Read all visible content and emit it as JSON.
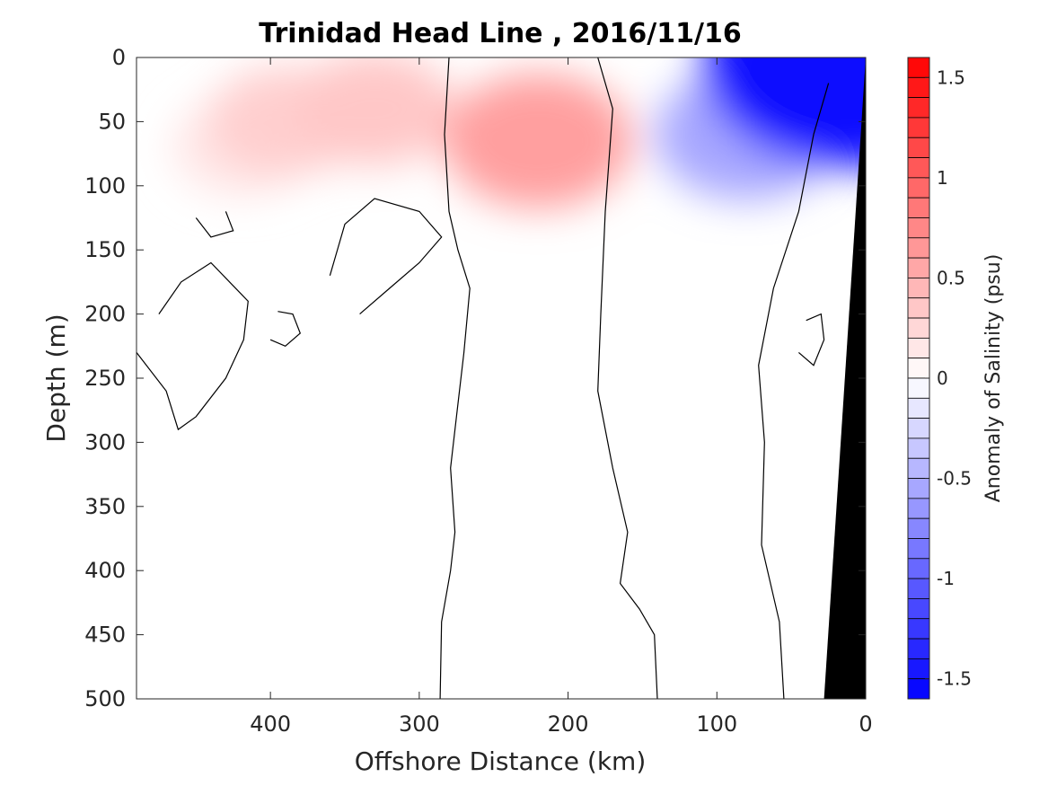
{
  "chart_data": {
    "type": "heatmap",
    "title": "Trinidad Head Line , 2016/11/16",
    "xlabel": "Offshore Distance (km)",
    "ylabel": "Depth (m)",
    "xlim": [
      490,
      0
    ],
    "ylim": [
      0,
      500
    ],
    "x_reversed": true,
    "y_reversed": true,
    "x_ticks": [
      400,
      300,
      200,
      100,
      0
    ],
    "y_ticks": [
      0,
      50,
      100,
      150,
      200,
      250,
      300,
      350,
      400,
      450,
      500
    ],
    "colorbar": {
      "label": "Anomaly of Salinity (psu)",
      "range": [
        -1.6,
        1.6
      ],
      "step": 0.1,
      "tick_values": [
        1.5,
        1,
        0.5,
        0,
        -0.5,
        -1,
        -1.5
      ],
      "tick_labels": [
        "1.5",
        "1",
        "0.5",
        "0",
        "-0.5",
        "-1",
        "-1.5"
      ],
      "colormap": "blue-white-red",
      "negative_color": "#0000ff",
      "positive_color": "#ff0000"
    },
    "anomaly_features": [
      {
        "x": 420,
        "y": 70,
        "value": 0.15
      },
      {
        "x": 390,
        "y": 50,
        "value": 0.3
      },
      {
        "x": 330,
        "y": 40,
        "value": 0.35
      },
      {
        "x": 220,
        "y": 65,
        "value": 0.6
      },
      {
        "x": 80,
        "y": 60,
        "value": -0.55
      },
      {
        "x": 12,
        "y": 5,
        "value": -1.5
      }
    ],
    "zero_contours": [
      {
        "points": [
          [
            286,
            500
          ],
          [
            285,
            440
          ],
          [
            279,
            400
          ],
          [
            276,
            370
          ],
          [
            279,
            320
          ],
          [
            275,
            280
          ],
          [
            270,
            230
          ],
          [
            266,
            180
          ],
          [
            274,
            150
          ],
          [
            280,
            120
          ],
          [
            283,
            60
          ],
          [
            280,
            0
          ]
        ]
      },
      {
        "points": [
          [
            140,
            500
          ],
          [
            142,
            450
          ],
          [
            152,
            430
          ],
          [
            165,
            410
          ],
          [
            160,
            370
          ],
          [
            170,
            320
          ],
          [
            180,
            260
          ],
          [
            178,
            200
          ],
          [
            175,
            120
          ],
          [
            170,
            40
          ],
          [
            180,
            0
          ]
        ]
      },
      {
        "points": [
          [
            55,
            500
          ],
          [
            58,
            440
          ],
          [
            70,
            380
          ],
          [
            68,
            300
          ],
          [
            72,
            240
          ],
          [
            62,
            180
          ],
          [
            45,
            120
          ],
          [
            35,
            60
          ],
          [
            25,
            20
          ]
        ]
      },
      {
        "points": [
          [
            490,
            230
          ],
          [
            470,
            260
          ],
          [
            462,
            290
          ],
          [
            450,
            280
          ],
          [
            430,
            250
          ],
          [
            418,
            220
          ],
          [
            415,
            190
          ],
          [
            440,
            160
          ],
          [
            460,
            175
          ],
          [
            475,
            200
          ]
        ]
      },
      {
        "points": [
          [
            340,
            200
          ],
          [
            320,
            180
          ],
          [
            300,
            160
          ],
          [
            285,
            140
          ],
          [
            300,
            120
          ],
          [
            330,
            110
          ],
          [
            350,
            130
          ],
          [
            360,
            170
          ]
        ]
      },
      {
        "points": [
          [
            450,
            125
          ],
          [
            440,
            140
          ],
          [
            425,
            135
          ],
          [
            430,
            120
          ]
        ]
      },
      {
        "points": [
          [
            400,
            220
          ],
          [
            390,
            225
          ],
          [
            380,
            215
          ],
          [
            385,
            200
          ],
          [
            395,
            198
          ]
        ]
      },
      {
        "points": [
          [
            45,
            230
          ],
          [
            35,
            240
          ],
          [
            28,
            220
          ],
          [
            30,
            200
          ],
          [
            40,
            205
          ]
        ]
      }
    ],
    "bathymetry": {
      "label": "seafloor",
      "color": "#000000",
      "points": [
        [
          0,
          0
        ],
        [
          0,
          500
        ],
        [
          28,
          500
        ]
      ]
    }
  }
}
